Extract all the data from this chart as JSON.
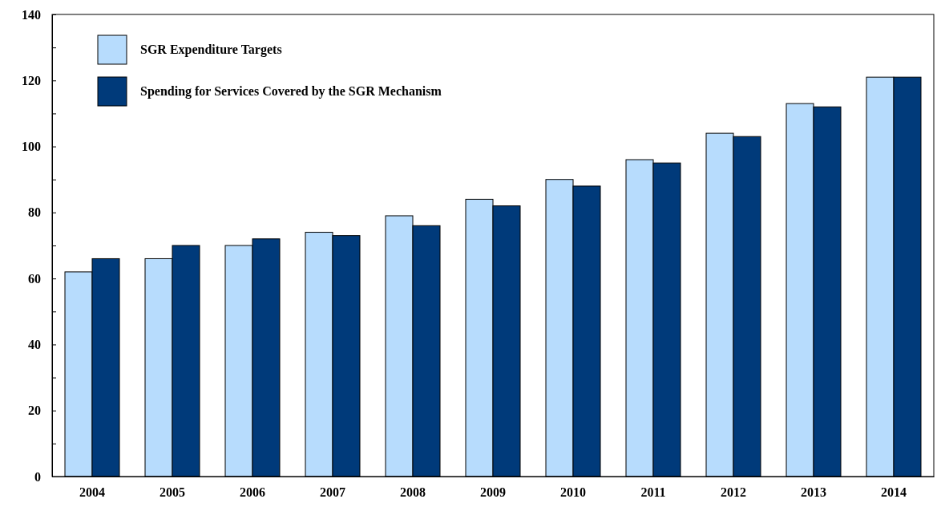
{
  "chart_data": {
    "type": "bar",
    "categories": [
      "2004",
      "2005",
      "2006",
      "2007",
      "2008",
      "2009",
      "2010",
      "2011",
      "2012",
      "2013",
      "2014"
    ],
    "series": [
      {
        "name": "SGR Expenditure Targets",
        "color": "#b7dcfd",
        "values": [
          62,
          66,
          70,
          74,
          79,
          84,
          90,
          96,
          104,
          113,
          121
        ]
      },
      {
        "name": "Spending for Services Covered by the SGR Mechanism",
        "color": "#003a7a",
        "values": [
          66,
          70,
          72,
          73,
          76,
          82,
          88,
          95,
          103,
          112,
          121
        ]
      }
    ],
    "ylim": [
      0,
      140
    ],
    "yticks": [
      0,
      {
        "value": 10,
        "label": null
      },
      20,
      {
        "value": 30,
        "label": null
      },
      40,
      {
        "value": 50,
        "label": null
      },
      60,
      {
        "value": 70,
        "label": null
      },
      80,
      {
        "value": 90,
        "label": null
      },
      100,
      {
        "value": 110,
        "label": null
      },
      120,
      {
        "value": 130,
        "label": null
      },
      140
    ],
    "grid": false,
    "legend": "top left"
  }
}
